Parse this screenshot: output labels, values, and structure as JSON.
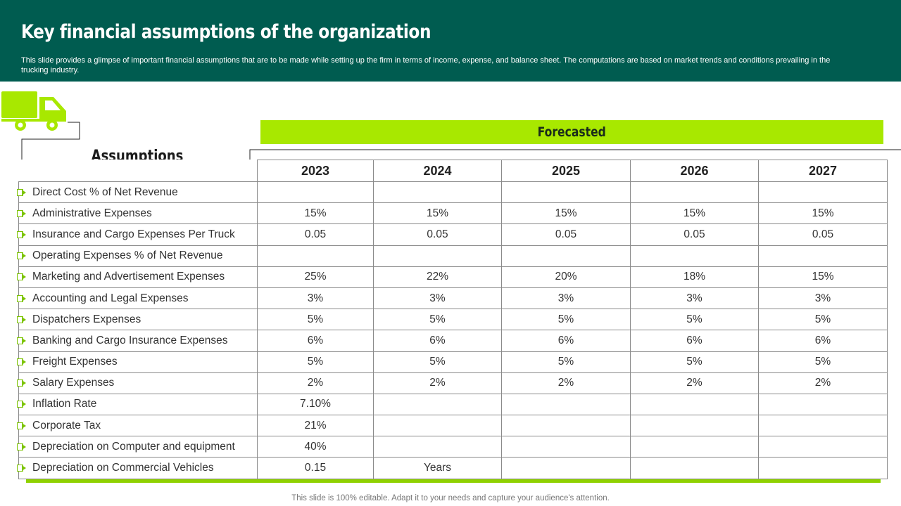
{
  "header": {
    "title": "Key financial assumptions of the organization",
    "subtitle": "This slide provides a glimpse of important financial assumptions that are to be made while setting up the firm in terms of income, expense, and balance sheet. The computations are based on market trends and conditions prevailing in the trucking industry."
  },
  "labels": {
    "forecasted": "Forecasted",
    "assumptions": "Assumptions"
  },
  "table": {
    "years": [
      "2023",
      "2024",
      "2025",
      "2026",
      "2027"
    ],
    "rows": [
      {
        "label": "Direct Cost % of Net Revenue",
        "values": [
          "",
          "",
          "",
          "",
          ""
        ]
      },
      {
        "label": "Administrative Expenses",
        "values": [
          "15%",
          "15%",
          "15%",
          "15%",
          "15%"
        ]
      },
      {
        "label": "Insurance and Cargo Expenses Per Truck",
        "values": [
          "0.05",
          "0.05",
          "0.05",
          "0.05",
          "0.05"
        ]
      },
      {
        "label": "Operating Expenses % of Net Revenue",
        "values": [
          "",
          "",
          "",
          "",
          ""
        ]
      },
      {
        "label": "Marketing and Advertisement Expenses",
        "values": [
          "25%",
          "22%",
          "20%",
          "18%",
          "15%"
        ]
      },
      {
        "label": "Accounting and Legal Expenses",
        "values": [
          "3%",
          "3%",
          "3%",
          "3%",
          "3%"
        ]
      },
      {
        "label": "Dispatchers Expenses",
        "values": [
          "5%",
          "5%",
          "5%",
          "5%",
          "5%"
        ]
      },
      {
        "label": "Banking and Cargo Insurance Expenses",
        "values": [
          "6%",
          "6%",
          "6%",
          "6%",
          "6%"
        ]
      },
      {
        "label": "Freight Expenses",
        "values": [
          "5%",
          "5%",
          "5%",
          "5%",
          "5%"
        ]
      },
      {
        "label": "Salary Expenses",
        "values": [
          "2%",
          "2%",
          "2%",
          "2%",
          "2%"
        ]
      },
      {
        "label": "Inflation Rate",
        "values": [
          "7.10%",
          "",
          "",
          "",
          ""
        ]
      },
      {
        "label": "Corporate Tax",
        "values": [
          "21%",
          "",
          "",
          "",
          ""
        ]
      },
      {
        "label": "Depreciation on Computer and equipment",
        "values": [
          "40%",
          "",
          "",
          "",
          ""
        ]
      },
      {
        "label": "Depreciation on Commercial Vehicles",
        "values": [
          "0.15",
          "Years",
          "",
          "",
          ""
        ]
      }
    ]
  },
  "footer": "This slide is 100% editable. Adapt it to your needs and capture your audience's attention.",
  "colors": {
    "header_bg": "#005c50",
    "accent_green": "#a8e800",
    "bullet_green": "#7cc400"
  },
  "icons": {
    "truck": "truck-icon",
    "bullet": "arrow-bullet-icon"
  }
}
